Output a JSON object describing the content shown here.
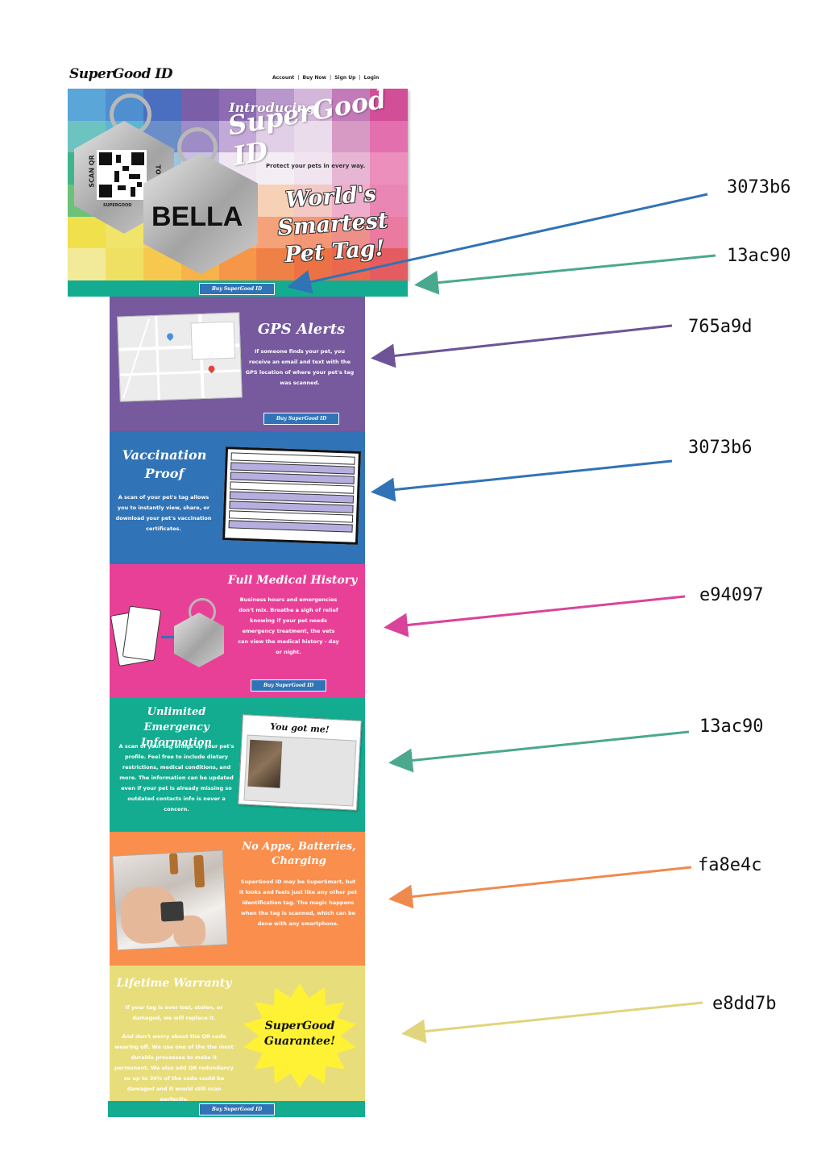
{
  "header": {
    "logo": "SuperGood ID",
    "nav": [
      "Account",
      "Buy Now",
      "Sign Up",
      "Login"
    ],
    "nav_separator": "|"
  },
  "hero": {
    "intro": "Introducing",
    "brand": "SuperGood ID",
    "subtitle": "Protect your pets in every way.",
    "headline": [
      "World's",
      "Smartest",
      "Pet Tag!"
    ],
    "tag_name": "BELLA",
    "tag_scan_text": "SCAN QR",
    "tag_to": "TO",
    "tag_brand": "SUPERGOOD",
    "button": "Buy SuperGood ID",
    "bar_color": "#13ac90",
    "button_color": "#3073b6"
  },
  "sections": [
    {
      "id": "gps",
      "title": "GPS Alerts",
      "body": "If someone finds your pet, you receive an email and text with the GPS location of where your pet's tag was scanned.",
      "button": "Buy SuperGood ID",
      "color": "#765a9d"
    },
    {
      "id": "vaccination",
      "title": "Vaccination Proof",
      "body": "A scan of your pet's tag allows you to instantly view, share, or download your pet's vaccination certificates.",
      "color": "#3073b6"
    },
    {
      "id": "medical",
      "title": "Full Medical History",
      "body": "Business hours and emergencies don't mix. Breathe a sigh of relief knowing if your pet needs emergency treatment, the vets can view the medical history - day or night.",
      "button": "Buy SuperGood ID",
      "color": "#e94097"
    },
    {
      "id": "emergency",
      "title": "Unlimited Emergency Information",
      "body": "A scan of your tag brings up your pet's profile. Feel free to include dietary restrictions, medical conditions, and more. The information can be updated even if your pet is already missing so outdated contacts info is never a concern.",
      "screenshot_title": "You got me!",
      "color": "#13ac90"
    },
    {
      "id": "no-apps",
      "title": "No Apps, Batteries, Charging",
      "body": "SuperGood ID may be SuperSmart, but it looks and feels just like any other pet identification tag. The magic happens when the tag is scanned, which can be done with any smartphone.",
      "color": "#fa8e4c"
    },
    {
      "id": "warranty",
      "title": "Lifetime Warranty",
      "body_1": "If your tag is ever lost, stolen, or damaged, we will replace it.",
      "body_2": "And don't worry about the QR code wearing off. We use one of the the most durable processes to make it permanent. We also add QR redundancy so up to 30% of the code could be damaged and it would still scan perfectly.",
      "badge": [
        "SuperGood",
        "Guarantee!"
      ],
      "button": "Buy SuperGood ID",
      "color": "#e8dd7b",
      "footer_color": "#13ac90"
    }
  ],
  "annotations": [
    {
      "label": "3073b6",
      "color": "#3073b6"
    },
    {
      "label": "13ac90",
      "color": "#13ac90"
    },
    {
      "label": "765a9d",
      "color": "#765a9d"
    },
    {
      "label": "3073b6",
      "color": "#3073b6"
    },
    {
      "label": "e94097",
      "color": "#e94097"
    },
    {
      "label": "13ac90",
      "color": "#13ac90"
    },
    {
      "label": "fa8e4c",
      "color": "#fa8e4c"
    },
    {
      "label": "e8dd7b",
      "color": "#e8dd7b"
    }
  ]
}
